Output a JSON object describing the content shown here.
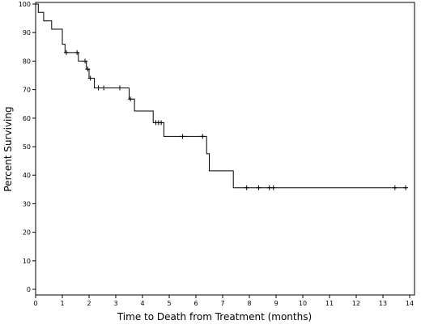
{
  "chart_data": {
    "type": "line",
    "subtype": "kaplan-meier-step",
    "title": "",
    "xlabel": "Time to Death from Treatment (months)",
    "ylabel": "Percent Surviving",
    "xlim": [
      0,
      14
    ],
    "ylim": [
      0,
      100
    ],
    "x_ticks": [
      "0",
      "1",
      "2",
      "3",
      "4",
      "5",
      "6",
      "7",
      "8",
      "9",
      "10",
      "11",
      "12",
      "13",
      "14"
    ],
    "y_ticks": [
      "0",
      "10",
      "20",
      "30",
      "40",
      "50",
      "60",
      "70",
      "80",
      "90",
      "100"
    ],
    "grid": false,
    "legend": "none",
    "line_color": "#000000",
    "steps": [
      {
        "x": 0.0,
        "y": 100.0
      },
      {
        "x": 0.1,
        "y": 97.1
      },
      {
        "x": 0.3,
        "y": 94.1
      },
      {
        "x": 0.6,
        "y": 91.2
      },
      {
        "x": 1.0,
        "y": 85.9
      },
      {
        "x": 1.1,
        "y": 83.0
      },
      {
        "x": 1.6,
        "y": 80.0
      },
      {
        "x": 1.9,
        "y": 77.2
      },
      {
        "x": 2.0,
        "y": 74.0
      },
      {
        "x": 2.2,
        "y": 70.6
      },
      {
        "x": 3.5,
        "y": 66.7
      },
      {
        "x": 3.7,
        "y": 62.5
      },
      {
        "x": 4.4,
        "y": 58.4
      },
      {
        "x": 4.8,
        "y": 53.6
      },
      {
        "x": 6.4,
        "y": 47.5
      },
      {
        "x": 6.5,
        "y": 41.5
      },
      {
        "x": 7.4,
        "y": 35.6
      }
    ],
    "x_end": 13.9,
    "censored": [
      {
        "x": 1.15,
        "y": 83.0
      },
      {
        "x": 1.55,
        "y": 83.0
      },
      {
        "x": 1.85,
        "y": 80.0
      },
      {
        "x": 1.95,
        "y": 77.2
      },
      {
        "x": 2.05,
        "y": 74.0
      },
      {
        "x": 2.35,
        "y": 70.6
      },
      {
        "x": 2.55,
        "y": 70.6
      },
      {
        "x": 3.15,
        "y": 70.6
      },
      {
        "x": 3.55,
        "y": 66.7
      },
      {
        "x": 4.5,
        "y": 58.4
      },
      {
        "x": 4.6,
        "y": 58.4
      },
      {
        "x": 4.7,
        "y": 58.4
      },
      {
        "x": 5.5,
        "y": 53.6
      },
      {
        "x": 6.25,
        "y": 53.6
      },
      {
        "x": 7.9,
        "y": 35.6
      },
      {
        "x": 8.35,
        "y": 35.6
      },
      {
        "x": 8.75,
        "y": 35.6
      },
      {
        "x": 8.9,
        "y": 35.6
      },
      {
        "x": 13.45,
        "y": 35.6
      },
      {
        "x": 13.85,
        "y": 35.6
      }
    ]
  }
}
